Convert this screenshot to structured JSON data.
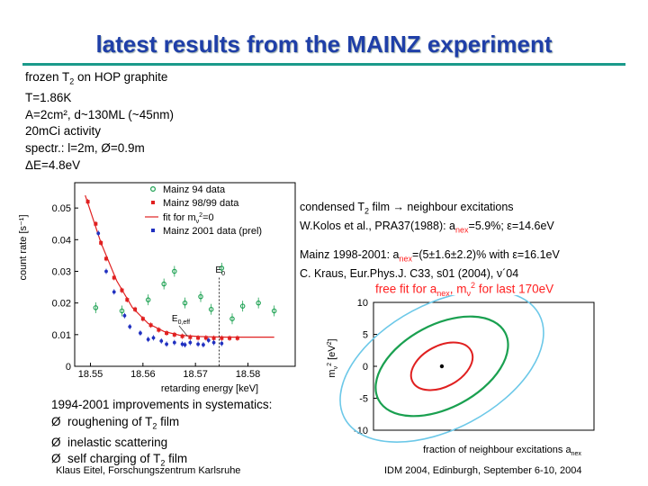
{
  "title": "latest results from the MAINZ experiment",
  "setup": {
    "line1_pre": "frozen T",
    "line1_sub": "2",
    "line1_post": " on HOP graphite",
    "temp": "T=1.86K",
    "area": "A=2cm², d~130ML (~45nm)",
    "activity": "20mCi activity",
    "spectr": "spectr.: l=2m, Ø=0.9m",
    "resolution": "ΔE=4.8eV"
  },
  "annotation": {
    "condensed_pre": "condensed T",
    "condensed_sub": "2",
    "condensed_post": " film → neighbour excitations",
    "kolos_pre": "W.Kolos et al., PRA37(1988): a",
    "kolos_sub": "nex",
    "kolos_post": "=5.9%;   ε=14.6eV",
    "mainz_pre": "Mainz 1998-2001:  a",
    "mainz_sub": "nex",
    "mainz_post": "=(5±1.6±2.2)% with ε=16.1eV",
    "kraus": "C. Kraus, Eur.Phys.J. C33, s01 (2004), ν´04",
    "freefit_pre": "free fit for a",
    "freefit_sub": "nex",
    "freefit_mid": ", m",
    "freefit_sub2": "ν",
    "freefit_sup": "2",
    "freefit_post": " for last 170eV"
  },
  "improvements": {
    "heading": "1994-2001 improvements in systematics:",
    "bullet": "Ø",
    "item1_pre": "roughening of T",
    "item1_sub": "2",
    "item1_post": " film",
    "item2": "inelastic scattering",
    "item3_pre": "self charging of T",
    "item3_sub": "2",
    "item3_post": " film"
  },
  "footer": {
    "left": "Klaus Eitel, Forschungszentrum Karlsruhe",
    "right": "IDM 2004, Edinburgh, September 6-10, 2004"
  },
  "colors": {
    "title": "#1f3fa8",
    "rule": "#1a9a8a",
    "green": "#1aa050",
    "red": "#e02020",
    "blue": "#2030c0",
    "highlight": "#ff2020"
  },
  "chart_data": [
    {
      "type": "scatter",
      "title": "",
      "xlabel": "retarding energy  [keV]",
      "ylabel": "count rate  [s⁻¹]",
      "xlim": [
        18.547,
        18.589
      ],
      "ylim": [
        0,
        0.058
      ],
      "x_ticks": [
        "18.55",
        "18.56",
        "18.57",
        "18.58"
      ],
      "y_ticks": [
        "0",
        "0.01",
        "0.02",
        "0.03",
        "0.04",
        "0.05"
      ],
      "legend": [
        "Mainz 94 data",
        "Mainz 98/99 data",
        "fit for m",
        "Mainz 2001 data (prel)"
      ],
      "legend_fit_sub": "ν",
      "legend_fit_sup": "2",
      "legend_fit_post": "=0",
      "marker_e0": "E",
      "marker_e0_sub": "0",
      "marker_eeff": "E",
      "marker_eeff_sub": "0,eff",
      "series": [
        {
          "name": "Mainz 94 data",
          "x": [
            18.551,
            18.556,
            18.561,
            18.564,
            18.566,
            18.568,
            18.571,
            18.573,
            18.575,
            18.577,
            18.579,
            18.582,
            18.585
          ],
          "y": [
            0.0185,
            0.0175,
            0.021,
            0.026,
            0.03,
            0.02,
            0.022,
            0.018,
            0.031,
            0.015,
            0.019,
            0.02,
            0.0175
          ]
        },
        {
          "name": "Mainz 98/99 data",
          "x": [
            18.5495,
            18.551,
            18.552,
            18.553,
            18.5545,
            18.556,
            18.557,
            18.5585,
            18.56,
            18.5615,
            18.563,
            18.5645,
            18.566,
            18.5675,
            18.569,
            18.5705,
            18.572,
            18.5735,
            18.575,
            18.5765,
            18.578
          ],
          "y": [
            0.052,
            0.045,
            0.039,
            0.034,
            0.028,
            0.024,
            0.021,
            0.018,
            0.015,
            0.013,
            0.0115,
            0.0105,
            0.01,
            0.0095,
            0.0092,
            0.009,
            0.009,
            0.0089,
            0.0089,
            0.0089,
            0.0089
          ]
        },
        {
          "name": "fit for mν²=0",
          "x": [
            18.549,
            18.552,
            18.555,
            18.558,
            18.561,
            18.564,
            18.567,
            18.5705,
            18.573,
            18.576,
            18.579,
            18.582,
            18.585
          ],
          "y": [
            0.054,
            0.039,
            0.027,
            0.0185,
            0.0135,
            0.011,
            0.0098,
            0.0094,
            0.0093,
            0.0092,
            0.0092,
            0.0092,
            0.0092
          ]
        },
        {
          "name": "Mainz 2001 data (prel)",
          "x": [
            18.5515,
            18.553,
            18.5545,
            18.5565,
            18.5575,
            18.5595,
            18.561,
            18.562,
            18.5635,
            18.5645,
            18.566,
            18.5675,
            18.568,
            18.569,
            18.5705,
            18.5715,
            18.5725,
            18.5735,
            18.575
          ],
          "y": [
            0.042,
            0.03,
            0.0235,
            0.016,
            0.0125,
            0.0105,
            0.0085,
            0.009,
            0.008,
            0.007,
            0.0075,
            0.007,
            0.0068,
            0.0075,
            0.007,
            0.0068,
            0.0082,
            0.0075,
            0.0072
          ]
        }
      ]
    },
    {
      "type": "contour",
      "title": "",
      "xlabel": "fraction of neighbour excitations a",
      "xlabel_sub": "nex",
      "ylabel": "m",
      "ylabel_sub": "ν",
      "ylabel_sup": "2",
      "ylabel_unit": " [eV",
      "ylabel_unit_sup": "2",
      "ylabel_unit_close": "]",
      "xlim": [
        0,
        0.2
      ],
      "ylim": [
        -10,
        10
      ],
      "y_ticks": [
        "10",
        "5",
        "0",
        "-5",
        "-10"
      ],
      "best_fit": {
        "x": 0.062,
        "y": 0
      },
      "contours": [
        {
          "level": "1σ",
          "color": "red",
          "cx": 0.062,
          "cy": 0.0,
          "rx": 0.03,
          "ry": 3.2
        },
        {
          "level": "2σ",
          "color": "green",
          "cx": 0.062,
          "cy": 0.0,
          "rx": 0.065,
          "ry": 6.5
        },
        {
          "level": "3σ",
          "color": "lightblue",
          "cx": 0.062,
          "cy": 0.0,
          "rx": 0.1,
          "ry": 9.8
        }
      ]
    }
  ]
}
